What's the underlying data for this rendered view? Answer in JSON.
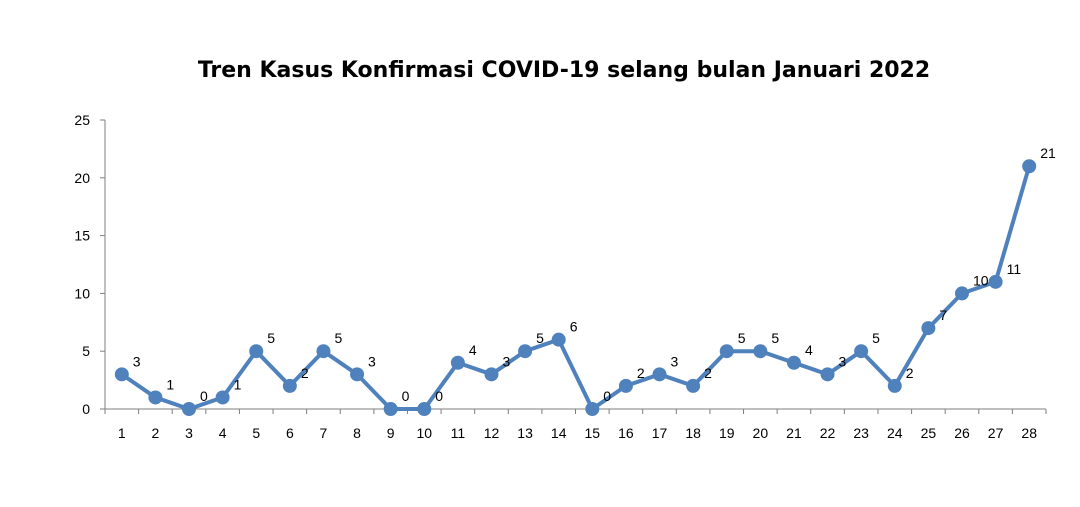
{
  "chart_data": {
    "type": "line",
    "title": "Tren Kasus Konfirmasi COVID-19 selang bulan Januari 2022",
    "xlabel": "",
    "ylabel": "",
    "categories": [
      "1",
      "2",
      "3",
      "4",
      "5",
      "6",
      "7",
      "8",
      "9",
      "10",
      "11",
      "12",
      "13",
      "14",
      "15",
      "16",
      "17",
      "18",
      "19",
      "20",
      "21",
      "22",
      "23",
      "24",
      "25",
      "26",
      "27",
      "28"
    ],
    "series": [
      {
        "name": "",
        "values": [
          3,
          1,
          0,
          1,
          5,
          2,
          5,
          3,
          0,
          0,
          4,
          3,
          5,
          6,
          0,
          2,
          3,
          2,
          5,
          5,
          4,
          3,
          5,
          2,
          7,
          10,
          11,
          21
        ]
      }
    ],
    "ylim": [
      0,
      25
    ],
    "yticks": [
      0,
      5,
      10,
      15,
      20,
      25
    ],
    "grid": false,
    "legend": "none",
    "data_labels": true,
    "colors": {
      "line": "#4F81BD",
      "axis": "#7f7f7f"
    }
  }
}
